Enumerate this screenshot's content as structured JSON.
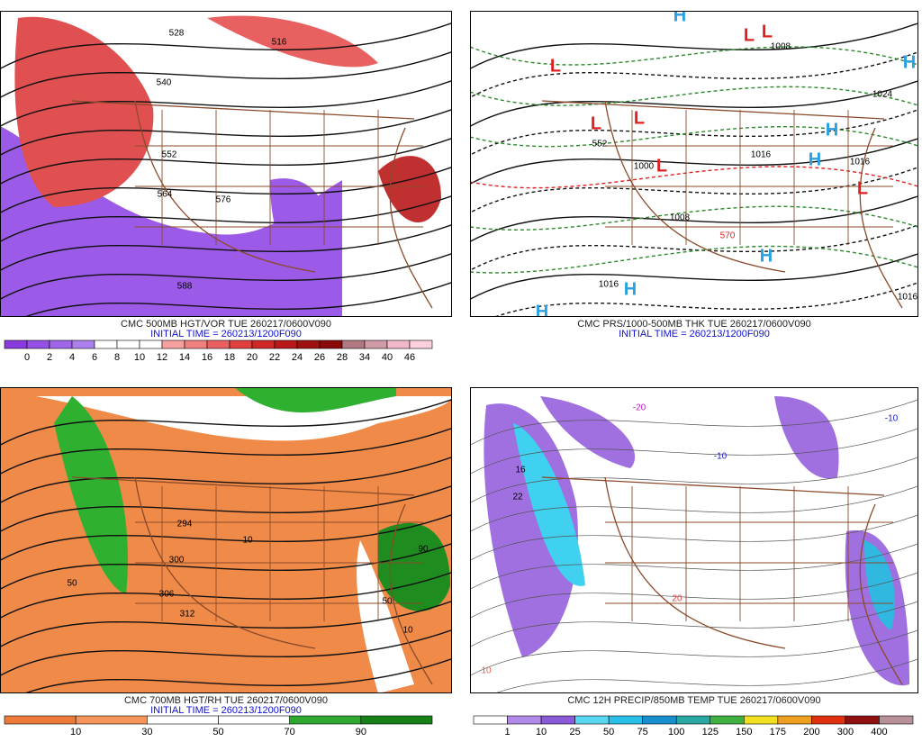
{
  "panels": [
    {
      "caption": "CMC 500MB HGT/VOR TUE 260217/0600V090",
      "initial_time": "INITIAL TIME = 260213/1200F090",
      "colorbar": {
        "ticks": [
          0,
          2,
          4,
          6,
          8,
          10,
          12,
          14,
          16,
          18,
          20,
          22,
          24,
          26,
          28,
          34,
          40,
          46
        ],
        "colors": [
          "#8a3be0",
          "#9550e6",
          "#a066ea",
          "#ad80ee",
          "#ffffff",
          "#ffffff",
          "#ffffff",
          "#f6a0a0",
          "#f08080",
          "#ea6060",
          "#e04040",
          "#d02828",
          "#b81818",
          "#a01010",
          "#8a0a0a",
          "#b07880",
          "#d09aa6",
          "#f0b8c8",
          "#fcd0dc"
        ]
      },
      "labels": [
        {
          "text": 528,
          "color": "#000000"
        },
        {
          "text": 516,
          "color": "#000000"
        },
        {
          "text": 540,
          "color": "#000000"
        },
        {
          "text": 552,
          "color": "#000000"
        },
        {
          "text": 564,
          "color": "#000000"
        },
        {
          "text": 576,
          "color": "#000000"
        },
        {
          "text": 588,
          "color": "#000000"
        }
      ]
    },
    {
      "caption": "CMC PRS/1000-500MB THK TUE 260217/0600V090",
      "initial_time": "INITIAL TIME = 260213/1200F090",
      "labels": [
        {
          "text": "H",
          "color": "#2aa0e0"
        },
        {
          "text": "H",
          "color": "#2aa0e0"
        },
        {
          "text": "H",
          "color": "#2aa0e0"
        },
        {
          "text": "H",
          "color": "#2aa0e0"
        },
        {
          "text": "H",
          "color": "#2aa0e0"
        },
        {
          "text": "H",
          "color": "#2aa0e0"
        },
        {
          "text": "H",
          "color": "#2aa0e0"
        },
        {
          "text": "L",
          "color": "#e02020"
        },
        {
          "text": "L",
          "color": "#e02020"
        },
        {
          "text": "L",
          "color": "#e02020"
        },
        {
          "text": "L",
          "color": "#e02020"
        },
        {
          "text": "L",
          "color": "#e02020"
        },
        {
          "text": "L",
          "color": "#e02020"
        },
        {
          "text": "L",
          "color": "#e02020"
        },
        {
          "text": 1008,
          "color": "#000000"
        },
        {
          "text": 1024,
          "color": "#000000"
        },
        {
          "text": 1016,
          "color": "#000000"
        },
        {
          "text": 1016,
          "color": "#000000"
        },
        {
          "text": 1000,
          "color": "#000000"
        },
        {
          "text": 1008,
          "color": "#000000"
        },
        {
          "text": 570,
          "color": "#e02020"
        },
        {
          "text": 1016,
          "color": "#000000"
        },
        {
          "text": 1016,
          "color": "#000000"
        },
        {
          "text": 552,
          "color": "#000000"
        }
      ]
    },
    {
      "caption": "CMC 700MB HGT/RH TUE 260217/0600V090",
      "initial_time": "INITIAL TIME = 260213/1200F090",
      "colorbar": {
        "ticks": [
          10,
          30,
          50,
          70,
          90
        ],
        "colors": [
          "#ee7a3a",
          "#f5955a",
          "#ffffff",
          "#ffffff",
          "#2ea82e",
          "#188018"
        ]
      },
      "labels": [
        {
          "text": 294,
          "color": "#000000"
        },
        {
          "text": 300,
          "color": "#000000"
        },
        {
          "text": 306,
          "color": "#000000"
        },
        {
          "text": 312,
          "color": "#000000"
        },
        {
          "text": 50,
          "color": "#000000"
        },
        {
          "text": 10,
          "color": "#000000"
        },
        {
          "text": 10,
          "color": "#000000"
        },
        {
          "text": 50,
          "color": "#000000"
        },
        {
          "text": 90,
          "color": "#000000"
        }
      ]
    },
    {
      "caption": "CMC 12H PRECIP/850MB TEMP TUE 260217/0600V090",
      "colorbar": {
        "ticks": [
          1,
          10,
          25,
          50,
          75,
          100,
          125,
          150,
          175,
          200,
          300,
          400
        ],
        "colors": [
          "#ffffff",
          "#b08ae8",
          "#8a5ad8",
          "#58d8f0",
          "#28c0e8",
          "#1890d0",
          "#28a8a0",
          "#40b040",
          "#f0e020",
          "#f0a020",
          "#e03010",
          "#901010",
          "#b89098"
        ]
      },
      "labels": [
        {
          "text": -10,
          "color": "#1818d0"
        },
        {
          "text": -20,
          "color": "#c020c0"
        },
        {
          "text": -10,
          "color": "#1818d0"
        },
        {
          "text": 16,
          "color": "#000000"
        },
        {
          "text": 22,
          "color": "#000000"
        },
        {
          "text": 20,
          "color": "#e04040"
        },
        {
          "text": 10,
          "color": "#e06060"
        }
      ]
    }
  ]
}
